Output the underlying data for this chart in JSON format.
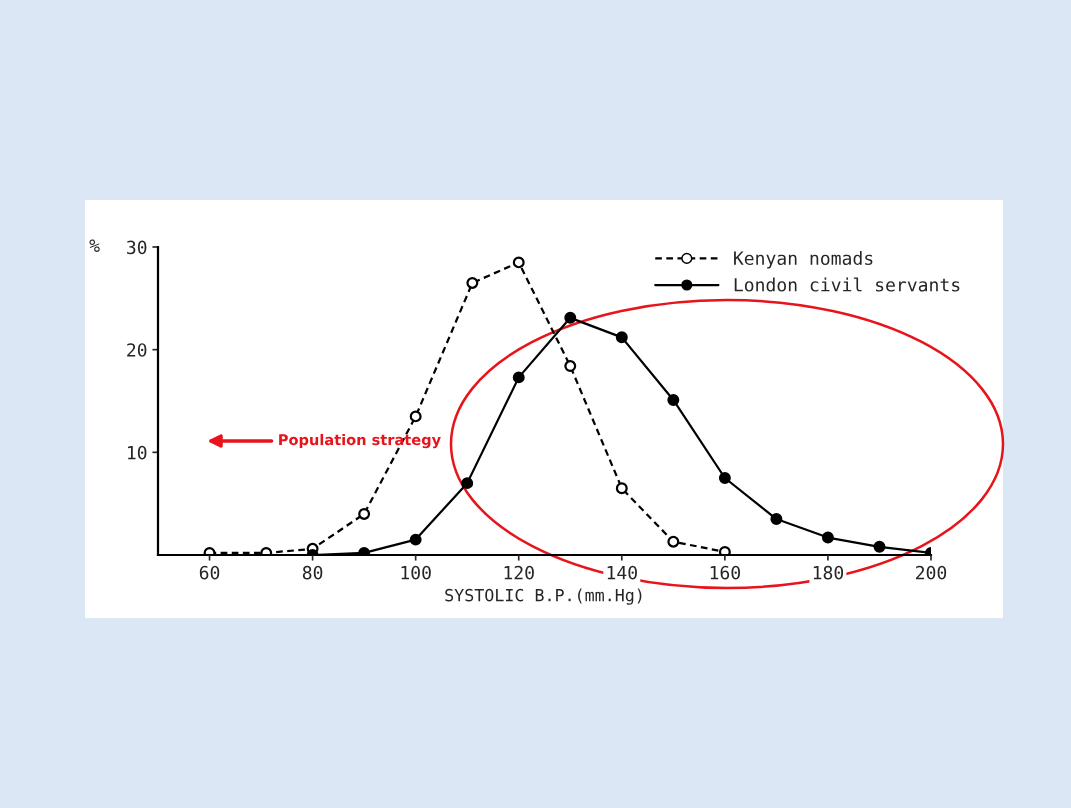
{
  "chart_data": {
    "type": "line",
    "xlabel": "SYSTOLIC B.P.(mm.Hg)",
    "ylabel": "%",
    "xlim": [
      50,
      200
    ],
    "xticks": [
      60,
      80,
      100,
      120,
      140,
      160,
      180,
      200
    ],
    "ylim": [
      0,
      30
    ],
    "yticks": [
      10,
      20,
      30
    ],
    "legend": "top right",
    "grid": false,
    "marker": "circle",
    "annotations": [
      "Population strategy"
    ],
    "series": [
      {
        "name": "Kenyan nomads",
        "color": "#000000",
        "line_style": "dashed",
        "x": [
          60,
          71,
          80,
          90,
          100,
          111,
          120,
          130,
          140,
          150,
          160
        ],
        "values": [
          0.2,
          0.2,
          0.6,
          4.0,
          13.5,
          26.5,
          28.5,
          18.4,
          6.5,
          1.3,
          0.3
        ]
      },
      {
        "name": "London civil servants",
        "color": "#000000",
        "line_style": "solid",
        "x": [
          80,
          90,
          100,
          110,
          120,
          130,
          140,
          150,
          160,
          170,
          180,
          190,
          200
        ],
        "values": [
          0,
          0.2,
          1.5,
          7.0,
          17.3,
          23.1,
          21.2,
          15.1,
          7.5,
          3.5,
          1.7,
          0.8,
          0.2
        ]
      }
    ]
  }
}
